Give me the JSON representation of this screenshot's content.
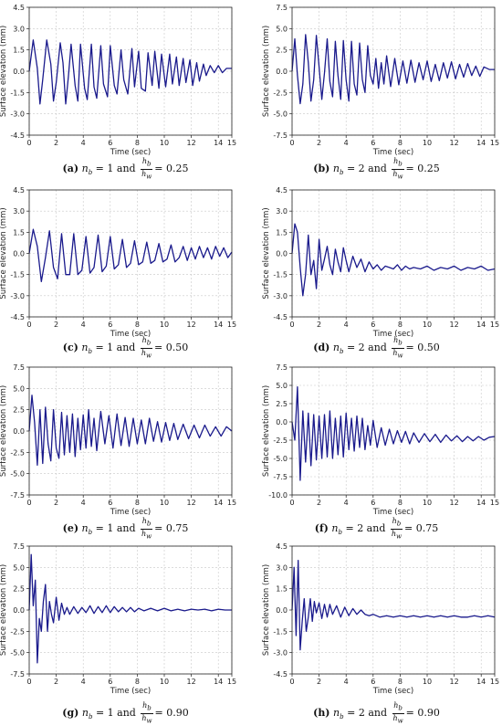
{
  "colors": {
    "line": "#1a1a8c",
    "grid": "#c8c8c8",
    "axis": "#222222"
  },
  "chart_data": [
    {
      "id": "a",
      "type": "line",
      "caption_tag": "(a)",
      "caption_nb": "1",
      "caption_ratio": "0.25",
      "xlabel": "Time (sec)",
      "ylabel": "Surface elevation (mm)",
      "xlim": [
        0,
        15
      ],
      "ylim": [
        -4.5,
        4.5
      ],
      "xticks": [
        "0",
        "2",
        "4",
        "6",
        "8",
        "10",
        "12",
        "14",
        "15"
      ],
      "yticks": [
        "-4.5",
        "-3.0",
        "-1.5",
        "0.0",
        "1.5",
        "3.0",
        "4.5"
      ],
      "grid": true,
      "x": [
        0,
        0.3,
        0.6,
        0.8,
        1.0,
        1.3,
        1.6,
        1.8,
        2.0,
        2.3,
        2.5,
        2.7,
        2.9,
        3.1,
        3.4,
        3.6,
        3.8,
        4.1,
        4.3,
        4.6,
        4.8,
        5.0,
        5.3,
        5.5,
        5.8,
        6.0,
        6.3,
        6.5,
        6.8,
        7.0,
        7.3,
        7.6,
        7.8,
        8.1,
        8.3,
        8.6,
        8.8,
        9.1,
        9.3,
        9.6,
        9.8,
        10.1,
        10.4,
        10.6,
        10.9,
        11.1,
        11.4,
        11.6,
        11.9,
        12.1,
        12.4,
        12.6,
        12.9,
        13.1,
        13.4,
        13.7,
        14.0,
        14.3,
        14.6,
        15.0
      ],
      "y": [
        0,
        2.2,
        0.2,
        -2.3,
        -0.6,
        2.2,
        0.5,
        -2.1,
        -0.8,
        2.0,
        0.6,
        -2.3,
        -0.4,
        1.9,
        -1.0,
        -2.1,
        1.9,
        -1.2,
        -2.0,
        1.9,
        -1.1,
        -1.9,
        1.8,
        -0.9,
        -1.8,
        1.8,
        -1.0,
        -1.6,
        1.5,
        -0.6,
        -1.6,
        1.6,
        -1.1,
        1.4,
        -1.2,
        -1.4,
        1.3,
        -1.0,
        1.4,
        -1.2,
        1.2,
        -1.1,
        1.2,
        -0.9,
        1.0,
        -1.0,
        0.9,
        -0.8,
        0.8,
        -1.0,
        0.6,
        -0.7,
        0.5,
        -0.3,
        0.4,
        -0.1,
        0.4,
        -0.1,
        0.2,
        0.2
      ]
    },
    {
      "id": "b",
      "type": "line",
      "caption_tag": "(b)",
      "caption_nb": "2",
      "caption_ratio": "0.25",
      "xlabel": "Time (sec)",
      "ylabel": "Surface elevation (mm)",
      "xlim": [
        0,
        15
      ],
      "ylim": [
        -7.5,
        7.5
      ],
      "xticks": [
        "0",
        "2",
        "4",
        "6",
        "8",
        "10",
        "12",
        "14",
        "15"
      ],
      "yticks": [
        "-7.5",
        "-5.0",
        "-2.5",
        "0.0",
        "2.5",
        "5.0",
        "7.5"
      ],
      "grid": true,
      "x": [
        0,
        0.2,
        0.4,
        0.6,
        0.8,
        1.0,
        1.2,
        1.4,
        1.6,
        1.8,
        2.0,
        2.2,
        2.4,
        2.6,
        2.8,
        3.0,
        3.2,
        3.4,
        3.6,
        3.8,
        4.0,
        4.2,
        4.4,
        4.6,
        4.8,
        5.0,
        5.2,
        5.4,
        5.6,
        5.8,
        6.0,
        6.2,
        6.4,
        6.6,
        6.8,
        7.0,
        7.3,
        7.6,
        7.9,
        8.2,
        8.5,
        8.8,
        9.1,
        9.4,
        9.7,
        10.0,
        10.3,
        10.6,
        10.9,
        11.2,
        11.5,
        11.8,
        12.1,
        12.4,
        12.7,
        13.0,
        13.3,
        13.6,
        13.9,
        14.2,
        14.6,
        15.0
      ],
      "y": [
        0,
        3.8,
        -0.5,
        -3.8,
        -1.5,
        4.3,
        1.0,
        -3.5,
        -1.0,
        4.2,
        0.5,
        -3.3,
        -0.2,
        3.8,
        -1.2,
        -3.0,
        3.5,
        -0.5,
        -3.3,
        3.6,
        -1.0,
        -3.5,
        3.5,
        -1.5,
        -2.8,
        3.3,
        -1.0,
        -2.5,
        3.0,
        -0.5,
        -1.5,
        1.5,
        -2.0,
        1.0,
        -1.5,
        1.8,
        -1.8,
        1.5,
        -1.6,
        1.2,
        -1.4,
        1.3,
        -1.3,
        1.0,
        -1.0,
        1.2,
        -1.2,
        0.8,
        -1.1,
        1.0,
        -0.8,
        1.1,
        -0.9,
        0.8,
        -0.7,
        0.9,
        -0.5,
        0.6,
        -0.6,
        0.5,
        0.2,
        0.2
      ]
    },
    {
      "id": "c",
      "type": "line",
      "caption_tag": "(c)",
      "caption_nb": "1",
      "caption_ratio": "0.50",
      "xlabel": "Time (sec)",
      "ylabel": "Surface elevation (mm)",
      "xlim": [
        0,
        15
      ],
      "ylim": [
        -4.5,
        4.5
      ],
      "xticks": [
        "0",
        "2",
        "4",
        "6",
        "8",
        "10",
        "12",
        "14",
        "15"
      ],
      "yticks": [
        "-4.5",
        "-3.0",
        "-1.5",
        "0.0",
        "1.5",
        "3.0",
        "4.5"
      ],
      "grid": true,
      "x": [
        0,
        0.3,
        0.6,
        0.9,
        1.2,
        1.5,
        1.8,
        2.1,
        2.4,
        2.7,
        3.0,
        3.3,
        3.6,
        3.9,
        4.2,
        4.5,
        4.8,
        5.1,
        5.4,
        5.7,
        6.0,
        6.3,
        6.6,
        6.9,
        7.2,
        7.5,
        7.8,
        8.1,
        8.4,
        8.7,
        9.0,
        9.3,
        9.6,
        9.9,
        10.2,
        10.5,
        10.8,
        11.1,
        11.4,
        11.7,
        12.0,
        12.3,
        12.6,
        12.9,
        13.2,
        13.5,
        13.8,
        14.1,
        14.4,
        14.7,
        15.0
      ],
      "y": [
        0,
        1.7,
        0.5,
        -2.0,
        -0.3,
        1.6,
        -1.0,
        -1.8,
        1.4,
        -1.5,
        -1.5,
        1.4,
        -1.5,
        -1.2,
        1.2,
        -1.4,
        -1.0,
        1.3,
        -1.3,
        -0.9,
        1.2,
        -1.1,
        -0.8,
        1.0,
        -1.0,
        -0.7,
        0.9,
        -0.8,
        -0.6,
        0.8,
        -0.7,
        -0.5,
        0.7,
        -0.6,
        -0.4,
        0.6,
        -0.6,
        -0.3,
        0.5,
        -0.5,
        0.4,
        -0.4,
        0.5,
        -0.3,
        0.4,
        -0.4,
        0.5,
        -0.2,
        0.4,
        -0.3,
        0.1
      ]
    },
    {
      "id": "d",
      "type": "line",
      "caption_tag": "(d)",
      "caption_nb": "2",
      "caption_ratio": "0.50",
      "xlabel": "Time (sec)",
      "ylabel": "Surface elevation (mm)",
      "xlim": [
        0,
        15
      ],
      "ylim": [
        -4.5,
        4.5
      ],
      "xticks": [
        "0",
        "2",
        "4",
        "6",
        "8",
        "10",
        "12",
        "14",
        "15"
      ],
      "yticks": [
        "-4.5",
        "-3.0",
        "-1.5",
        "0.0",
        "1.5",
        "3.0",
        "4.5"
      ],
      "grid": true,
      "x": [
        0,
        0.2,
        0.4,
        0.6,
        0.8,
        1.0,
        1.2,
        1.4,
        1.6,
        1.8,
        2.0,
        2.2,
        2.4,
        2.6,
        2.8,
        3.0,
        3.2,
        3.4,
        3.6,
        3.8,
        4.0,
        4.2,
        4.5,
        4.8,
        5.1,
        5.4,
        5.7,
        6.0,
        6.3,
        6.6,
        6.9,
        7.2,
        7.5,
        7.8,
        8.1,
        8.4,
        8.7,
        9.0,
        9.5,
        10.0,
        10.5,
        11.0,
        11.5,
        12.0,
        12.5,
        13.0,
        13.5,
        14.0,
        14.5,
        15.0
      ],
      "y": [
        0,
        2.1,
        1.5,
        -1.0,
        -3.0,
        -1.5,
        1.3,
        -1.5,
        -0.5,
        -2.5,
        1.0,
        -1.2,
        -0.4,
        0.5,
        -0.8,
        -1.5,
        0.3,
        -0.6,
        -1.3,
        0.4,
        -0.5,
        -1.3,
        -0.2,
        -1.0,
        -0.4,
        -1.3,
        -0.6,
        -1.1,
        -0.8,
        -1.2,
        -0.9,
        -1.0,
        -1.1,
        -0.8,
        -1.2,
        -0.9,
        -1.1,
        -1.0,
        -1.1,
        -0.9,
        -1.2,
        -1.0,
        -1.1,
        -0.9,
        -1.2,
        -1.0,
        -1.1,
        -0.9,
        -1.2,
        -1.1
      ]
    },
    {
      "id": "e",
      "type": "line",
      "caption_tag": "(e)",
      "caption_nb": "1",
      "caption_ratio": "0.75",
      "xlabel": "Time (sec)",
      "ylabel": "Surface elevation (mm)",
      "xlim": [
        0,
        15
      ],
      "ylim": [
        -7.5,
        7.5
      ],
      "xticks": [
        "0",
        "2",
        "4",
        "6",
        "8",
        "10",
        "12",
        "14",
        "15"
      ],
      "yticks": [
        "-7.5",
        "-5.0",
        "-2.5",
        "0.0",
        "2.5",
        "5.0",
        "7.5"
      ],
      "grid": true,
      "x": [
        0,
        0.2,
        0.4,
        0.6,
        0.8,
        1.0,
        1.2,
        1.4,
        1.6,
        1.8,
        2.0,
        2.2,
        2.4,
        2.6,
        2.8,
        3.0,
        3.2,
        3.4,
        3.6,
        3.8,
        4.0,
        4.2,
        4.4,
        4.6,
        4.8,
        5.0,
        5.3,
        5.6,
        5.9,
        6.2,
        6.5,
        6.8,
        7.1,
        7.4,
        7.7,
        8.0,
        8.3,
        8.6,
        8.9,
        9.2,
        9.5,
        9.8,
        10.1,
        10.4,
        10.7,
        11.0,
        11.4,
        11.8,
        12.2,
        12.6,
        13.0,
        13.4,
        13.8,
        14.2,
        14.6,
        15.0
      ],
      "y": [
        0,
        4.2,
        1.0,
        -4.0,
        2.5,
        -3.8,
        2.8,
        -1.5,
        -3.5,
        2.5,
        -2.0,
        -3.2,
        2.2,
        -2.8,
        1.8,
        -2.5,
        2.0,
        -3.0,
        1.5,
        -2.2,
        1.9,
        -2.0,
        2.5,
        -1.8,
        1.5,
        -2.3,
        2.3,
        -1.5,
        1.8,
        -2.0,
        2.0,
        -1.7,
        1.6,
        -1.8,
        1.5,
        -1.5,
        1.3,
        -1.5,
        1.5,
        -1.2,
        1.1,
        -1.3,
        1.0,
        -1.1,
        0.9,
        -1.0,
        0.8,
        -0.9,
        0.7,
        -0.8,
        0.7,
        -0.6,
        0.5,
        -0.6,
        0.5,
        0.0
      ]
    },
    {
      "id": "f",
      "type": "line",
      "caption_tag": "(f)",
      "caption_nb": "2",
      "caption_ratio": "0.75",
      "xlabel": "Time (sec)",
      "ylabel": "Surface elevation (mm)",
      "xlim": [
        0,
        15
      ],
      "ylim": [
        -10.0,
        7.5
      ],
      "xticks": [
        "0",
        "2",
        "4",
        "6",
        "8",
        "10",
        "12",
        "14",
        "15"
      ],
      "yticks": [
        "-10.0",
        "-7.5",
        "-5.0",
        "-2.5",
        "0.0",
        "2.5",
        "5.0",
        "7.5"
      ],
      "grid": true,
      "x": [
        0,
        0.2,
        0.4,
        0.6,
        0.8,
        1.0,
        1.2,
        1.4,
        1.6,
        1.8,
        2.0,
        2.2,
        2.4,
        2.6,
        2.8,
        3.0,
        3.2,
        3.4,
        3.6,
        3.8,
        4.0,
        4.2,
        4.4,
        4.6,
        4.8,
        5.0,
        5.2,
        5.4,
        5.6,
        5.8,
        6.0,
        6.3,
        6.6,
        6.9,
        7.2,
        7.5,
        7.8,
        8.1,
        8.4,
        8.7,
        9.0,
        9.4,
        9.8,
        10.2,
        10.6,
        11.0,
        11.4,
        11.8,
        12.2,
        12.6,
        13.0,
        13.4,
        13.8,
        14.2,
        14.6,
        15.0
      ],
      "y": [
        0,
        -2.5,
        4.8,
        -8.0,
        1.5,
        -5.5,
        1.2,
        -6.0,
        1.0,
        -5.2,
        0.8,
        -5.0,
        1.0,
        -4.8,
        1.5,
        -5.0,
        0.5,
        -4.5,
        0.8,
        -4.8,
        1.2,
        -3.8,
        0.5,
        -4.0,
        0.8,
        -3.5,
        0.5,
        -3.8,
        -0.5,
        -3.2,
        0.2,
        -3.5,
        -0.8,
        -3.2,
        -1.0,
        -3.0,
        -1.2,
        -2.8,
        -1.3,
        -3.0,
        -1.5,
        -2.8,
        -1.6,
        -2.7,
        -1.7,
        -2.8,
        -1.8,
        -2.6,
        -1.9,
        -2.7,
        -2.0,
        -2.6,
        -2.0,
        -2.5,
        -2.1,
        -2.0
      ]
    },
    {
      "id": "g",
      "type": "line",
      "caption_tag": "(g)",
      "caption_nb": "1",
      "caption_ratio": "0.90",
      "xlabel": "Time (sec)",
      "ylabel": "Surface elevation (mm)",
      "xlim": [
        0,
        15
      ],
      "ylim": [
        -7.5,
        7.5
      ],
      "xticks": [
        "0",
        "2",
        "4",
        "6",
        "8",
        "10",
        "12",
        "14",
        "15"
      ],
      "yticks": [
        "-7.5",
        "-5.0",
        "-2.5",
        "0.0",
        "2.5",
        "5.0",
        "7.5"
      ],
      "grid": true,
      "x": [
        0,
        0.15,
        0.3,
        0.45,
        0.6,
        0.75,
        0.9,
        1.05,
        1.2,
        1.35,
        1.5,
        1.65,
        1.8,
        2.0,
        2.2,
        2.4,
        2.6,
        2.8,
        3.0,
        3.3,
        3.6,
        3.9,
        4.2,
        4.5,
        4.8,
        5.1,
        5.4,
        5.7,
        6.0,
        6.3,
        6.6,
        6.9,
        7.2,
        7.5,
        7.8,
        8.1,
        8.5,
        9.0,
        9.5,
        10.0,
        10.5,
        11.0,
        11.5,
        12.0,
        12.5,
        13.0,
        13.5,
        14.0,
        14.5,
        15.0
      ],
      "y": [
        0,
        6.5,
        0.5,
        3.5,
        -6.2,
        -1.0,
        -2.5,
        1.0,
        3.0,
        -2.5,
        1.0,
        -0.5,
        -1.5,
        1.5,
        -1.2,
        0.8,
        -0.5,
        0.3,
        -0.5,
        0.4,
        -0.4,
        0.3,
        -0.3,
        0.5,
        -0.4,
        0.4,
        -0.3,
        0.5,
        -0.3,
        0.4,
        -0.2,
        0.3,
        -0.2,
        0.3,
        -0.2,
        0.2,
        -0.1,
        0.2,
        -0.1,
        0.2,
        -0.1,
        0.1,
        -0.1,
        0.1,
        0.0,
        0.1,
        -0.1,
        0.1,
        0.0,
        0.0
      ]
    },
    {
      "id": "h",
      "type": "line",
      "caption_tag": "(h)",
      "caption_nb": "2",
      "caption_ratio": "0.90",
      "xlabel": "Time (sec)",
      "ylabel": "Surface elevation (mm)",
      "xlim": [
        0,
        15
      ],
      "ylim": [
        -4.5,
        4.5
      ],
      "xticks": [
        "0",
        "2",
        "4",
        "6",
        "8",
        "10",
        "12",
        "14",
        "15"
      ],
      "yticks": [
        "-4.5",
        "-3.0",
        "-1.5",
        "0.0",
        "1.5",
        "3.0",
        "4.5"
      ],
      "grid": true,
      "x": [
        0,
        0.15,
        0.3,
        0.45,
        0.6,
        0.75,
        0.9,
        1.05,
        1.2,
        1.35,
        1.5,
        1.65,
        1.8,
        2.0,
        2.2,
        2.4,
        2.6,
        2.8,
        3.0,
        3.3,
        3.6,
        3.9,
        4.2,
        4.5,
        4.8,
        5.1,
        5.4,
        5.7,
        6.0,
        6.5,
        7.0,
        7.5,
        8.0,
        8.5,
        9.0,
        9.5,
        10.0,
        10.5,
        11.0,
        11.5,
        12.0,
        12.5,
        13.0,
        13.5,
        14.0,
        14.5,
        15.0
      ],
      "y": [
        0,
        3.0,
        -1.8,
        3.5,
        -2.8,
        -0.8,
        0.8,
        -1.5,
        -0.5,
        0.8,
        -0.8,
        0.6,
        -0.2,
        0.5,
        -0.6,
        0.4,
        -0.5,
        0.4,
        -0.3,
        0.3,
        -0.5,
        0.2,
        -0.4,
        0.1,
        -0.3,
        0.0,
        -0.3,
        -0.4,
        -0.3,
        -0.5,
        -0.4,
        -0.5,
        -0.4,
        -0.5,
        -0.4,
        -0.5,
        -0.4,
        -0.5,
        -0.4,
        -0.5,
        -0.4,
        -0.5,
        -0.5,
        -0.4,
        -0.5,
        -0.4,
        -0.5
      ]
    }
  ]
}
